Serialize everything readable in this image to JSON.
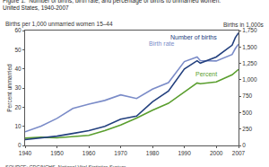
{
  "chart_data": {
    "type": "line",
    "title": "Figure 1.  Number of births, birth rate, and percentage of births to unmarried women:\nUnited States, 1940-2007",
    "ylabel": "Percent unmarried",
    "y2label": "Births in 1,000s",
    "annotations": [
      "Births per 1,000 unmarried women 15–44"
    ],
    "source": "SOURCE: CDC/NCHS, National Vital Statistics System.",
    "x": [
      1940,
      1945,
      1950,
      1955,
      1960,
      1965,
      1970,
      1975,
      1980,
      1985,
      1990,
      1994,
      1995,
      2000,
      2005,
      2006,
      2007
    ],
    "series": [
      {
        "name": "Number of births",
        "color": "#23407e",
        "axis": "y2",
        "values": [
          89.5,
          117.4,
          141.6,
          183.3,
          224.3,
          291.2,
          398.7,
          447.9,
          665.7,
          828.2,
          1165.4,
          1289.6,
          1253.9,
          1347.0,
          1527.0,
          1641.9,
          1714.6
        ]
      },
      {
        "name": "Birth rate",
        "color": "#7b8cc8",
        "values": [
          7.1,
          10.1,
          14.1,
          19.3,
          21.6,
          23.5,
          26.4,
          24.5,
          29.4,
          32.8,
          43.8,
          46.2,
          44.3,
          44.1,
          47.5,
          50.6,
          52.9
        ]
      },
      {
        "name": "Percent",
        "color": "#5a9e2e",
        "values": [
          3.8,
          4.3,
          4.0,
          4.5,
          5.3,
          7.7,
          10.7,
          14.3,
          18.4,
          22.0,
          28.0,
          32.6,
          32.2,
          33.2,
          36.9,
          38.5,
          39.7
        ]
      }
    ],
    "xlim": [
      1940,
      2007
    ],
    "xticks": [
      1940,
      1950,
      1960,
      1970,
      1980,
      1990,
      2000,
      2007
    ],
    "ylim": [
      0,
      60
    ],
    "yticks": [
      0,
      10,
      20,
      30,
      40,
      50,
      60
    ],
    "y2lim": [
      0,
      1750
    ],
    "y2ticks": [
      0,
      250,
      500,
      750,
      {
        "value": 1000,
        "label": "1,000"
      },
      {
        "value": 1250,
        "label": "1,250"
      },
      {
        "value": 1500,
        "label": "1,500"
      },
      {
        "value": 1750,
        "label": "1,750"
      }
    ],
    "grid": false
  }
}
